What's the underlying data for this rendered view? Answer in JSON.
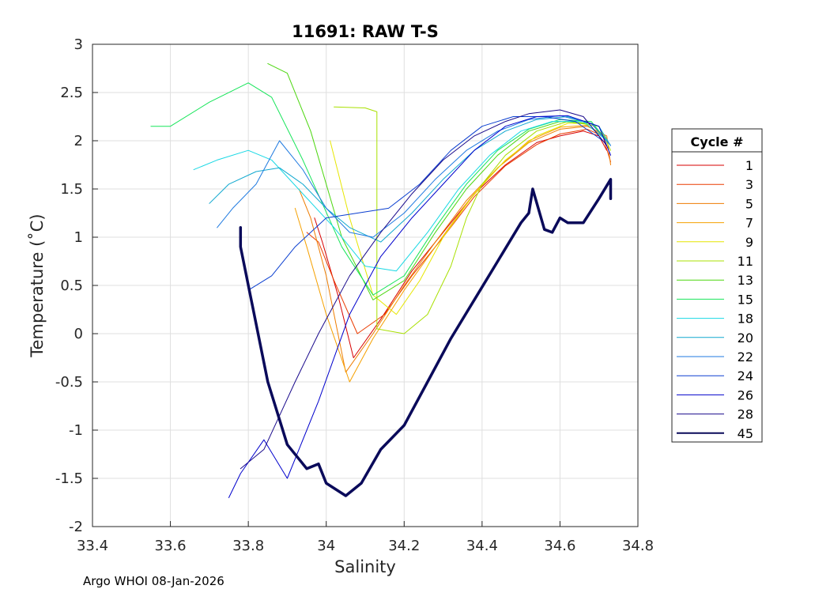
{
  "chart_data": {
    "type": "line",
    "title": "11691: RAW T-S",
    "xlabel": "Salinity",
    "ylabel": "Temperature (˚C)",
    "xlim": [
      33.4,
      34.8
    ],
    "ylim": [
      -2,
      3
    ],
    "x_ticks": [
      "33.4",
      "33.6",
      "33.8",
      "34",
      "34.2",
      "34.4",
      "34.6",
      "34.8"
    ],
    "y_ticks": [
      "3",
      "2.5",
      "2",
      "1.5",
      "1",
      "0.5",
      "0",
      "-0.5",
      "-1",
      "-1.5",
      "-2"
    ],
    "grid": true,
    "legend_title": "Cycle #",
    "legend_position": "right",
    "footer": "Argo WHOI 08-Jan-2026",
    "series": [
      {
        "name": "1",
        "color": "#d70000",
        "x": [
          33.97,
          33.99,
          34.03,
          34.07,
          34.14,
          34.22,
          34.3,
          34.38,
          34.46,
          34.54,
          34.6,
          34.66,
          34.7,
          34.72
        ],
        "y": [
          1.2,
          0.95,
          0.4,
          -0.25,
          0.15,
          0.65,
          1.05,
          1.45,
          1.75,
          1.98,
          2.05,
          2.1,
          2.05,
          1.9
        ]
      },
      {
        "name": "3",
        "color": "#ea3b00",
        "x": [
          33.95,
          33.98,
          34.02,
          34.08,
          34.15,
          34.22,
          34.3,
          34.38,
          34.46,
          34.54,
          34.6,
          34.67,
          34.71,
          34.73
        ],
        "y": [
          1.05,
          0.95,
          0.55,
          0.0,
          0.2,
          0.6,
          1.0,
          1.42,
          1.74,
          1.96,
          2.07,
          2.12,
          2.05,
          1.78
        ]
      },
      {
        "name": "5",
        "color": "#ee7c00",
        "x": [
          33.93,
          33.96,
          34.0,
          34.05,
          34.12,
          34.2,
          34.28,
          34.36,
          34.44,
          34.52,
          34.6,
          34.67,
          34.72,
          34.73
        ],
        "y": [
          1.5,
          1.2,
          0.6,
          -0.4,
          0.0,
          0.5,
          0.95,
          1.38,
          1.72,
          1.98,
          2.12,
          2.15,
          2.05,
          1.75
        ]
      },
      {
        "name": "7",
        "color": "#f5a000",
        "x": [
          33.92,
          33.95,
          34.0,
          34.06,
          34.12,
          34.2,
          34.28,
          34.36,
          34.44,
          34.52,
          34.6,
          34.67,
          34.72
        ],
        "y": [
          1.3,
          0.9,
          0.2,
          -0.5,
          -0.05,
          0.45,
          0.9,
          1.35,
          1.72,
          2.0,
          2.14,
          2.16,
          2.02
        ]
      },
      {
        "name": "9",
        "color": "#e6e600",
        "x": [
          34.01,
          34.06,
          34.12,
          34.18,
          34.24,
          34.3,
          34.38,
          34.46,
          34.54,
          34.62,
          34.68,
          34.72
        ],
        "y": [
          2.0,
          1.2,
          0.4,
          0.2,
          0.55,
          1.0,
          1.45,
          1.8,
          2.05,
          2.18,
          2.18,
          2.02
        ]
      },
      {
        "name": "11",
        "color": "#a8e000",
        "x": [
          34.02,
          34.1,
          34.13,
          34.13,
          34.2,
          34.26,
          34.32,
          34.36,
          34.4,
          34.46,
          34.54,
          34.62,
          34.7,
          34.73
        ],
        "y": [
          2.35,
          2.34,
          2.3,
          0.05,
          0.0,
          0.2,
          0.7,
          1.2,
          1.55,
          1.85,
          2.1,
          2.2,
          2.15,
          1.9
        ]
      },
      {
        "name": "13",
        "color": "#4cd60f",
        "x": [
          33.85,
          33.9,
          33.96,
          34.04,
          34.12,
          34.2,
          34.28,
          34.36,
          34.44,
          34.52,
          34.6,
          34.68,
          34.72
        ],
        "y": [
          2.8,
          2.7,
          2.1,
          1.0,
          0.35,
          0.55,
          1.05,
          1.5,
          1.85,
          2.1,
          2.2,
          2.18,
          2.0
        ]
      },
      {
        "name": "15",
        "color": "#17e55a",
        "x": [
          33.55,
          33.6,
          33.7,
          33.8,
          33.86,
          33.94,
          34.04,
          34.12,
          34.2,
          34.28,
          34.36,
          34.44,
          34.52,
          34.6,
          34.68,
          34.72
        ],
        "y": [
          2.15,
          2.15,
          2.4,
          2.6,
          2.45,
          1.8,
          0.9,
          0.4,
          0.6,
          1.1,
          1.55,
          1.9,
          2.12,
          2.22,
          2.2,
          2.0
        ]
      },
      {
        "name": "18",
        "color": "#18d8e4",
        "x": [
          33.66,
          33.72,
          33.8,
          33.86,
          33.94,
          34.02,
          34.1,
          34.18,
          34.26,
          34.34,
          34.42,
          34.5,
          34.58,
          34.66,
          34.72
        ],
        "y": [
          1.7,
          1.8,
          1.9,
          1.8,
          1.45,
          1.1,
          0.7,
          0.65,
          1.05,
          1.5,
          1.85,
          2.1,
          2.2,
          2.2,
          2.0
        ]
      },
      {
        "name": "20",
        "color": "#10a8cf",
        "x": [
          33.7,
          33.75,
          33.82,
          33.88,
          33.94,
          34.0,
          34.06,
          34.14,
          34.22,
          34.3,
          34.38,
          34.46,
          34.54,
          34.62,
          34.7,
          34.73
        ],
        "y": [
          1.35,
          1.55,
          1.68,
          1.72,
          1.55,
          1.3,
          1.1,
          0.95,
          1.25,
          1.6,
          1.9,
          2.1,
          2.22,
          2.25,
          2.15,
          1.95
        ]
      },
      {
        "name": "22",
        "color": "#1f7ae0",
        "x": [
          33.72,
          33.76,
          33.82,
          33.88,
          33.94,
          34.0,
          34.06,
          34.12,
          34.2,
          34.28,
          34.36,
          34.44,
          34.52,
          34.6,
          34.68,
          34.73
        ],
        "y": [
          1.1,
          1.3,
          1.55,
          2.0,
          1.7,
          1.3,
          1.05,
          1.0,
          1.25,
          1.6,
          1.9,
          2.1,
          2.22,
          2.26,
          2.18,
          1.95
        ]
      },
      {
        "name": "24",
        "color": "#0b3fd0",
        "x": [
          33.8,
          33.86,
          33.92,
          34.0,
          34.08,
          34.16,
          34.24,
          34.32,
          34.4,
          34.48,
          34.56,
          34.64,
          34.71
        ],
        "y": [
          0.45,
          0.6,
          0.9,
          1.2,
          1.25,
          1.3,
          1.55,
          1.9,
          2.15,
          2.25,
          2.25,
          2.2,
          2.0
        ]
      },
      {
        "name": "26",
        "color": "#0000cc",
        "x": [
          33.75,
          33.78,
          33.84,
          33.9,
          33.98,
          34.06,
          34.14,
          34.22,
          34.3,
          34.38,
          34.46,
          34.54,
          34.62,
          34.7,
          34.73
        ],
        "y": [
          -1.7,
          -1.45,
          -1.1,
          -1.5,
          -0.7,
          0.2,
          0.8,
          1.2,
          1.55,
          1.9,
          2.15,
          2.25,
          2.26,
          2.15,
          1.85
        ]
      },
      {
        "name": "28",
        "color": "#1a0a8c",
        "x": [
          33.78,
          33.84,
          33.92,
          33.98,
          34.06,
          34.14,
          34.22,
          34.3,
          34.38,
          34.46,
          34.52,
          34.6,
          34.66,
          34.72
        ],
        "y": [
          -1.4,
          -1.2,
          -0.5,
          0.0,
          0.6,
          1.05,
          1.45,
          1.8,
          2.05,
          2.2,
          2.28,
          2.32,
          2.25,
          1.95
        ]
      },
      {
        "name": "45",
        "color": "#0a0a5a",
        "x": [
          33.78,
          33.78,
          33.81,
          33.85,
          33.9,
          33.95,
          33.98,
          34.0,
          34.05,
          34.09,
          34.14,
          34.2,
          34.26,
          34.32,
          34.38,
          34.44,
          34.5,
          34.52,
          34.53,
          34.56,
          34.58,
          34.6,
          34.62,
          34.66,
          34.7,
          34.73,
          34.73
        ],
        "y": [
          1.1,
          0.9,
          0.3,
          -0.5,
          -1.15,
          -1.4,
          -1.35,
          -1.55,
          -1.68,
          -1.55,
          -1.2,
          -0.95,
          -0.5,
          -0.05,
          0.35,
          0.75,
          1.15,
          1.25,
          1.5,
          1.08,
          1.05,
          1.2,
          1.15,
          1.15,
          1.4,
          1.6,
          1.4
        ]
      }
    ]
  }
}
